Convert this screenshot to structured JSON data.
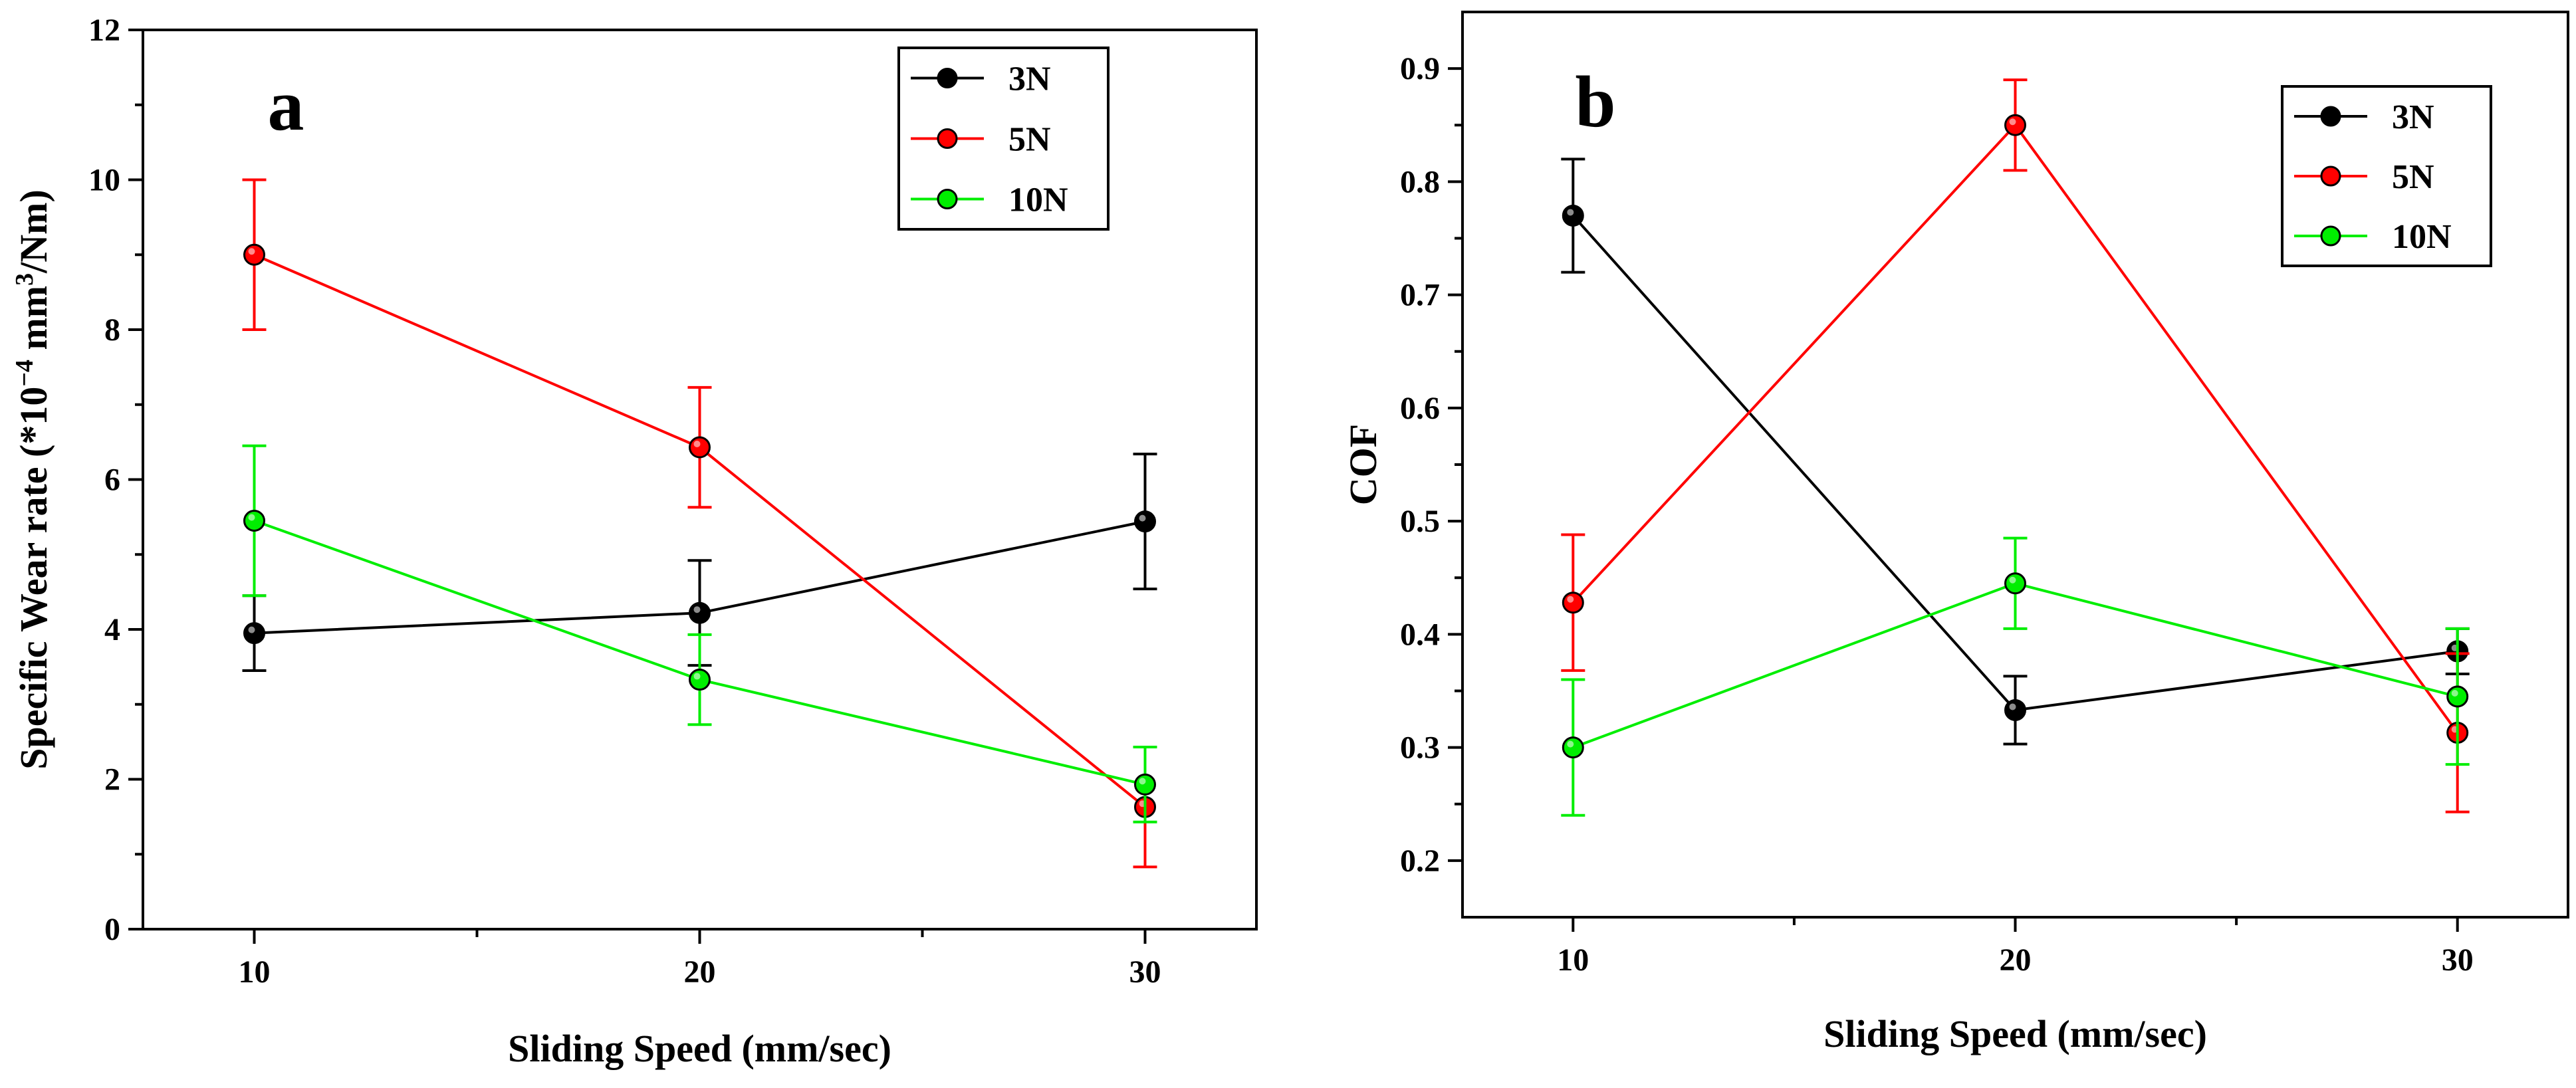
{
  "chart_data": [
    {
      "type": "line",
      "panel_label": "a",
      "x": [
        10,
        20,
        30
      ],
      "xticks": [
        "10",
        "20",
        "30"
      ],
      "xlabel": "Sliding Speed (mm/sec)",
      "ylabel_parts": {
        "pre": "Specific Wear rate (*10",
        "exp1": "−4",
        "mid": " mm",
        "exp2": "3",
        "post": "/Nm)"
      },
      "xlim": [
        7.5,
        32.5
      ],
      "ylim": [
        0,
        12
      ],
      "yticks": [
        "0",
        "2",
        "4",
        "6",
        "8",
        "10",
        "12"
      ],
      "legend_position": "top-right",
      "series": [
        {
          "name": "3N",
          "color": "#000000",
          "values": [
            3.95,
            4.22,
            5.44
          ],
          "errors": [
            0.5,
            0.7,
            0.9
          ]
        },
        {
          "name": "5N",
          "color": "#ff0000",
          "values": [
            9.0,
            6.43,
            1.63
          ],
          "errors": [
            1.0,
            0.8,
            0.8
          ]
        },
        {
          "name": "10N",
          "color": "#00ee00",
          "values": [
            5.45,
            3.33,
            1.93
          ],
          "errors": [
            1.0,
            0.6,
            0.5
          ]
        }
      ]
    },
    {
      "type": "line",
      "panel_label": "b",
      "x": [
        10,
        20,
        30
      ],
      "xticks": [
        "10",
        "20",
        "30"
      ],
      "xlabel": "Sliding Speed (mm/sec)",
      "ylabel": "COF",
      "xlim": [
        7.5,
        32.5
      ],
      "ylim": [
        0.15,
        0.95
      ],
      "yticks": [
        "0.2",
        "0.3",
        "0.4",
        "0.5",
        "0.6",
        "0.7",
        "0.8",
        "0.9"
      ],
      "legend_position": "top-right",
      "series": [
        {
          "name": "3N",
          "color": "#000000",
          "values": [
            0.77,
            0.333,
            0.385
          ],
          "errors": [
            0.05,
            0.03,
            0.02
          ]
        },
        {
          "name": "5N",
          "color": "#ff0000",
          "values": [
            0.428,
            0.85,
            0.313
          ],
          "errors": [
            0.06,
            0.04,
            0.07
          ]
        },
        {
          "name": "10N",
          "color": "#00ee00",
          "values": [
            0.3,
            0.445,
            0.345
          ],
          "errors": [
            0.06,
            0.04,
            0.06
          ]
        }
      ]
    }
  ]
}
